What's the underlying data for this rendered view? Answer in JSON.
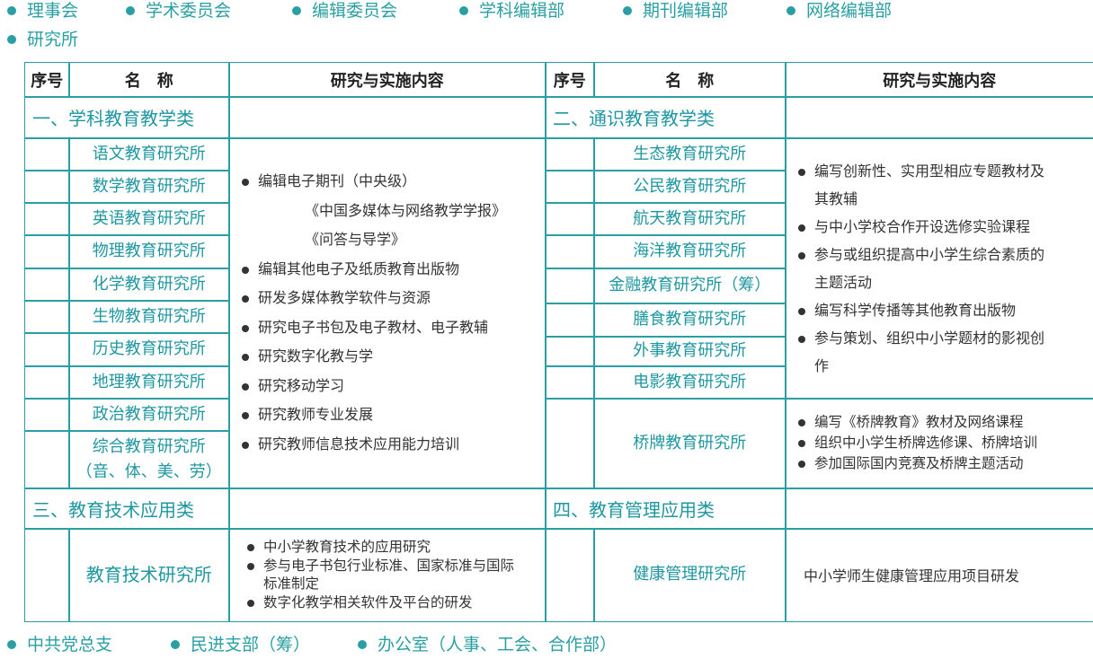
{
  "nav": [
    "理事会",
    "学术委员会",
    "编辑委员会",
    "学科编辑部",
    "期刊编辑部",
    "网络编辑部",
    "研究所"
  ],
  "table": {
    "header": [
      "序号",
      "名　称",
      "研究与实施内容",
      "序号",
      "名　称",
      "研究与实施内容"
    ],
    "sections": [
      {
        "title": "一、学科教育教学类",
        "items": [
          "语文教育研究所",
          "数学教育研究所",
          "英语教育研究所",
          "物理教育研究所",
          "化学教育研究所",
          "生物教育研究所",
          "历史教育研究所",
          "地理教育研究所",
          "政治教育研究所",
          "综合教育研究所\n（音、体、美、劳）"
        ],
        "content": [
          {
            "text": "编辑电子期刊（中央级）",
            "sub": [
              "《中国多媒体与网络教学学报》",
              "《问答与导学》"
            ]
          },
          {
            "text": "编辑其他电子及纸质教育出版物"
          },
          {
            "text": "研发多媒体教学软件与资源"
          },
          {
            "text": "研究电子书包及电子教材、电子教辅"
          },
          {
            "text": "研究数字化教与学"
          },
          {
            "text": "研究移动学习"
          },
          {
            "text": "研究教师专业发展"
          },
          {
            "text": "研究教师信息技术应用能力培训"
          }
        ]
      },
      {
        "title": "二、通识教育教学类",
        "items": [
          "生态教育研究所",
          "公民教育研究所",
          "航天教育研究所",
          "海洋教育研究所",
          "金融教育研究所（筹）",
          "膳食教育研究所",
          "外事教育研究所",
          "电影教育研究所",
          "桥牌教育研究所"
        ],
        "content": [
          {
            "text": "编写创新性、实用型相应专题教材及其教辅"
          },
          {
            "text": "与中小学校合作开设选修实验课程"
          },
          {
            "text": "参与或组织提高中小学生综合素质的主题活动"
          },
          {
            "text": "编写科学传播等其他教育出版物"
          },
          {
            "text": "参与策划、组织中小学题材的影视创作"
          }
        ],
        "content2": [
          {
            "text": "编写《桥牌教育》教材及网络课程"
          },
          {
            "text": "组织中小学生桥牌选修课、桥牌培训"
          },
          {
            "text": "参加国际国内竞赛及桥牌主题活动"
          }
        ]
      },
      {
        "title": "三、教育技术应用类",
        "items": [
          "教育技术研究所"
        ],
        "content": [
          {
            "text": "中小学教育技术的应用研究"
          },
          {
            "text": "参与电子书包行业标准、国家标准与国际标准制定"
          },
          {
            "text": "数字化教学相关软件及平台的研发"
          }
        ]
      },
      {
        "title": "四、教育管理应用类",
        "items": [
          "健康管理研究所"
        ],
        "content_text": "中小学师生健康管理应用项目研发"
      }
    ]
  },
  "footer": [
    "中共党总支",
    "民进支部（筹）",
    "办公室（人事、工会、合作部）"
  ]
}
